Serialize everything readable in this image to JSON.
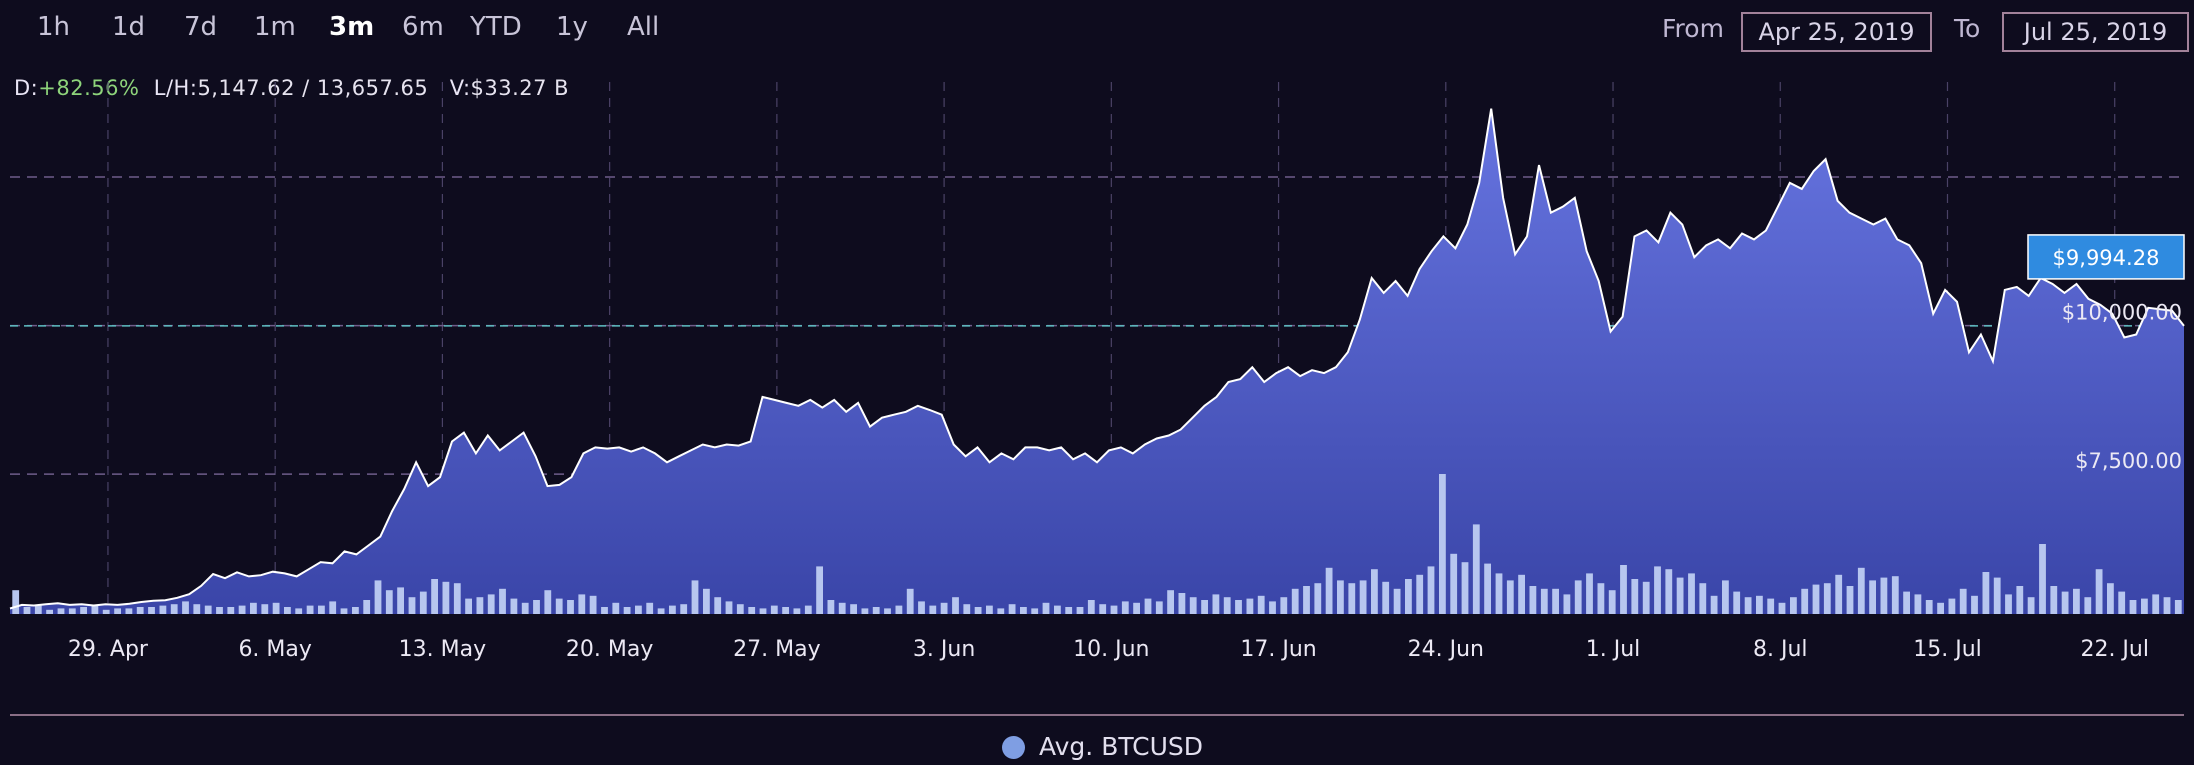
{
  "toolbar": {
    "ranges": [
      "1h",
      "1d",
      "7d",
      "1m",
      "3m",
      "6m",
      "YTD",
      "1y",
      "All"
    ],
    "active_range": "3m",
    "from_label": "From",
    "from_value": "Apr 25, 2019",
    "to_label": "To",
    "to_value": "Jul 25, 2019"
  },
  "stats": {
    "d_label": "D:",
    "d_value": "+82.56%",
    "lh_label": "L/H:",
    "lh_value": "5,147.62 / 13,657.65",
    "v_label": "V:",
    "v_value": "$33.27 B"
  },
  "colors": {
    "background": "#0e0c1e",
    "area_top": "#6674e0",
    "area_bottom": "#3a45a8",
    "line": "#ffffff",
    "volume": "#b7c6ef",
    "current_badge": "#2f8be0",
    "current_line": "#5fc0c4",
    "grid": "#4a4266",
    "gain": "#8ed47b"
  },
  "chart_data": {
    "type": "area",
    "series_name": "Avg. BTCUSD",
    "current_price_label": "$9,994.28",
    "current_price": 9994.28,
    "y_tick_labels": [
      "$7,500.00",
      "$10,000.00"
    ],
    "y_ticks": [
      7500,
      10000
    ],
    "x_tick_labels": [
      "29. Apr",
      "6. May",
      "13. May",
      "20. May",
      "27. May",
      "3. Jun",
      "10. Jun",
      "17. Jun",
      "24. Jun",
      "1. Jul",
      "8. Jul",
      "15. Jul",
      "22. Jul"
    ],
    "x_ticks": [
      4.1,
      11.1,
      18.1,
      25.1,
      32.1,
      39.1,
      46.1,
      53.1,
      60.1,
      67.1,
      74.1,
      81.1,
      88.1
    ],
    "xlim": [
      0,
      91
    ],
    "ylim": [
      5147.62,
      14300
    ],
    "grid": true,
    "legend_position": "bottom-center",
    "price": [
      [
        0.0,
        5240
      ],
      [
        0.5,
        5300
      ],
      [
        1.0,
        5290
      ],
      [
        1.5,
        5310
      ],
      [
        2.0,
        5330
      ],
      [
        2.5,
        5300
      ],
      [
        3.0,
        5310
      ],
      [
        3.5,
        5290
      ],
      [
        4.0,
        5310
      ],
      [
        4.5,
        5300
      ],
      [
        5.0,
        5320
      ],
      [
        5.5,
        5350
      ],
      [
        6.0,
        5370
      ],
      [
        6.5,
        5380
      ],
      [
        7.0,
        5420
      ],
      [
        7.5,
        5480
      ],
      [
        8.0,
        5620
      ],
      [
        8.5,
        5820
      ],
      [
        9.0,
        5750
      ],
      [
        9.5,
        5850
      ],
      [
        10.0,
        5780
      ],
      [
        10.5,
        5800
      ],
      [
        11.0,
        5860
      ],
      [
        11.5,
        5830
      ],
      [
        12.0,
        5780
      ],
      [
        12.5,
        5900
      ],
      [
        13.0,
        6020
      ],
      [
        13.5,
        6000
      ],
      [
        14.0,
        6200
      ],
      [
        14.5,
        6150
      ],
      [
        15.0,
        6300
      ],
      [
        15.5,
        6450
      ],
      [
        16.0,
        6880
      ],
      [
        16.5,
        7250
      ],
      [
        17.0,
        7700
      ],
      [
        17.5,
        7300
      ],
      [
        18.0,
        7450
      ],
      [
        18.5,
        8050
      ],
      [
        19.0,
        8200
      ],
      [
        19.5,
        7850
      ],
      [
        20.0,
        8150
      ],
      [
        20.5,
        7900
      ],
      [
        21.0,
        8050
      ],
      [
        21.5,
        8200
      ],
      [
        22.0,
        7800
      ],
      [
        22.5,
        7300
      ],
      [
        23.0,
        7320
      ],
      [
        23.5,
        7450
      ],
      [
        24.0,
        7850
      ],
      [
        24.5,
        7950
      ],
      [
        25.0,
        7930
      ],
      [
        25.5,
        7950
      ],
      [
        26.0,
        7880
      ],
      [
        26.5,
        7950
      ],
      [
        27.0,
        7850
      ],
      [
        27.5,
        7700
      ],
      [
        28.0,
        7800
      ],
      [
        28.5,
        7900
      ],
      [
        29.0,
        8000
      ],
      [
        29.5,
        7950
      ],
      [
        30.0,
        8000
      ],
      [
        30.5,
        7980
      ],
      [
        31.0,
        8050
      ],
      [
        31.5,
        8800
      ],
      [
        32.0,
        8750
      ],
      [
        32.5,
        8700
      ],
      [
        33.0,
        8650
      ],
      [
        33.5,
        8750
      ],
      [
        34.0,
        8620
      ],
      [
        34.5,
        8750
      ],
      [
        35.0,
        8550
      ],
      [
        35.5,
        8700
      ],
      [
        36.0,
        8300
      ],
      [
        36.5,
        8450
      ],
      [
        37.0,
        8500
      ],
      [
        37.5,
        8550
      ],
      [
        38.0,
        8650
      ],
      [
        38.5,
        8580
      ],
      [
        39.0,
        8500
      ],
      [
        39.5,
        8000
      ],
      [
        40.0,
        7800
      ],
      [
        40.5,
        7950
      ],
      [
        41.0,
        7700
      ],
      [
        41.5,
        7850
      ],
      [
        42.0,
        7750
      ],
      [
        42.5,
        7950
      ],
      [
        43.0,
        7950
      ],
      [
        43.5,
        7900
      ],
      [
        44.0,
        7950
      ],
      [
        44.5,
        7750
      ],
      [
        45.0,
        7850
      ],
      [
        45.5,
        7700
      ],
      [
        46.0,
        7900
      ],
      [
        46.5,
        7950
      ],
      [
        47.0,
        7850
      ],
      [
        47.5,
        8000
      ],
      [
        48.0,
        8100
      ],
      [
        48.5,
        8150
      ],
      [
        49.0,
        8250
      ],
      [
        49.5,
        8450
      ],
      [
        50.0,
        8650
      ],
      [
        50.5,
        8800
      ],
      [
        51.0,
        9050
      ],
      [
        51.5,
        9100
      ],
      [
        52.0,
        9300
      ],
      [
        52.5,
        9050
      ],
      [
        53.0,
        9200
      ],
      [
        53.5,
        9300
      ],
      [
        54.0,
        9150
      ],
      [
        54.5,
        9250
      ],
      [
        55.0,
        9200
      ],
      [
        55.5,
        9300
      ],
      [
        56.0,
        9550
      ],
      [
        56.5,
        10100
      ],
      [
        57.0,
        10800
      ],
      [
        57.5,
        10550
      ],
      [
        58.0,
        10750
      ],
      [
        58.5,
        10500
      ],
      [
        59.0,
        10950
      ],
      [
        59.5,
        11250
      ],
      [
        60.0,
        11500
      ],
      [
        60.5,
        11300
      ],
      [
        61.0,
        11700
      ],
      [
        61.5,
        12400
      ],
      [
        62.0,
        13650
      ],
      [
        62.5,
        12150
      ],
      [
        63.0,
        11200
      ],
      [
        63.5,
        11500
      ],
      [
        64.0,
        12700
      ],
      [
        64.5,
        11900
      ],
      [
        65.0,
        12000
      ],
      [
        65.5,
        12150
      ],
      [
        66.0,
        11250
      ],
      [
        66.5,
        10750
      ],
      [
        67.0,
        9900
      ],
      [
        67.5,
        10150
      ],
      [
        68.0,
        11500
      ],
      [
        68.5,
        11600
      ],
      [
        69.0,
        11400
      ],
      [
        69.5,
        11900
      ],
      [
        70.0,
        11700
      ],
      [
        70.5,
        11150
      ],
      [
        71.0,
        11350
      ],
      [
        71.5,
        11450
      ],
      [
        72.0,
        11300
      ],
      [
        72.5,
        11550
      ],
      [
        73.0,
        11450
      ],
      [
        73.5,
        11600
      ],
      [
        74.0,
        12000
      ],
      [
        74.5,
        12400
      ],
      [
        75.0,
        12300
      ],
      [
        75.5,
        12600
      ],
      [
        76.0,
        12800
      ],
      [
        76.5,
        12100
      ],
      [
        77.0,
        11900
      ],
      [
        77.5,
        11800
      ],
      [
        78.0,
        11700
      ],
      [
        78.5,
        11800
      ],
      [
        79.0,
        11450
      ],
      [
        79.5,
        11350
      ],
      [
        80.0,
        11050
      ],
      [
        80.5,
        10200
      ],
      [
        81.0,
        10600
      ],
      [
        81.5,
        10400
      ],
      [
        82.0,
        9550
      ],
      [
        82.5,
        9850
      ],
      [
        83.0,
        9400
      ],
      [
        83.5,
        10600
      ],
      [
        84.0,
        10650
      ],
      [
        84.5,
        10500
      ],
      [
        85.0,
        10800
      ],
      [
        85.5,
        10700
      ],
      [
        86.0,
        10550
      ],
      [
        86.5,
        10700
      ],
      [
        87.0,
        10450
      ],
      [
        87.5,
        10350
      ],
      [
        88.0,
        10200
      ],
      [
        88.5,
        9800
      ],
      [
        89.0,
        9850
      ],
      [
        89.5,
        10300
      ],
      [
        90.5,
        10250
      ],
      [
        91.0,
        9994
      ]
    ],
    "volume_relative": [
      0.17,
      0.05,
      0.06,
      0.03,
      0.04,
      0.04,
      0.05,
      0.06,
      0.03,
      0.04,
      0.04,
      0.05,
      0.05,
      0.06,
      0.07,
      0.09,
      0.07,
      0.06,
      0.05,
      0.05,
      0.06,
      0.08,
      0.07,
      0.08,
      0.05,
      0.04,
      0.06,
      0.06,
      0.09,
      0.04,
      0.05,
      0.1,
      0.24,
      0.17,
      0.19,
      0.12,
      0.16,
      0.25,
      0.23,
      0.22,
      0.11,
      0.12,
      0.14,
      0.18,
      0.11,
      0.08,
      0.1,
      0.17,
      0.11,
      0.1,
      0.14,
      0.13,
      0.05,
      0.08,
      0.05,
      0.06,
      0.08,
      0.04,
      0.06,
      0.07,
      0.24,
      0.18,
      0.12,
      0.09,
      0.07,
      0.05,
      0.04,
      0.06,
      0.05,
      0.04,
      0.06,
      0.34,
      0.1,
      0.08,
      0.07,
      0.04,
      0.05,
      0.04,
      0.06,
      0.18,
      0.09,
      0.06,
      0.08,
      0.12,
      0.07,
      0.05,
      0.06,
      0.04,
      0.07,
      0.05,
      0.04,
      0.08,
      0.06,
      0.05,
      0.05,
      0.1,
      0.07,
      0.06,
      0.09,
      0.08,
      0.11,
      0.09,
      0.17,
      0.15,
      0.12,
      0.1,
      0.14,
      0.12,
      0.1,
      0.11,
      0.13,
      0.09,
      0.12,
      0.18,
      0.2,
      0.22,
      0.33,
      0.24,
      0.22,
      0.24,
      0.32,
      0.23,
      0.18,
      0.25,
      0.28,
      0.34,
      1.0,
      0.43,
      0.37,
      0.64,
      0.36,
      0.29,
      0.24,
      0.28,
      0.2,
      0.18,
      0.18,
      0.14,
      0.24,
      0.29,
      0.22,
      0.17,
      0.35,
      0.25,
      0.23,
      0.34,
      0.32,
      0.26,
      0.29,
      0.22,
      0.13,
      0.24,
      0.16,
      0.12,
      0.13,
      0.11,
      0.08,
      0.12,
      0.18,
      0.21,
      0.22,
      0.28,
      0.2,
      0.33,
      0.24,
      0.26,
      0.27,
      0.16,
      0.14,
      0.1,
      0.08,
      0.11,
      0.18,
      0.13,
      0.3,
      0.26,
      0.14,
      0.2,
      0.12,
      0.5,
      0.2,
      0.16,
      0.18,
      0.12,
      0.32,
      0.22,
      0.16,
      0.1,
      0.11,
      0.14,
      0.12,
      0.1
    ]
  },
  "legend": {
    "label": "Avg. BTCUSD"
  }
}
